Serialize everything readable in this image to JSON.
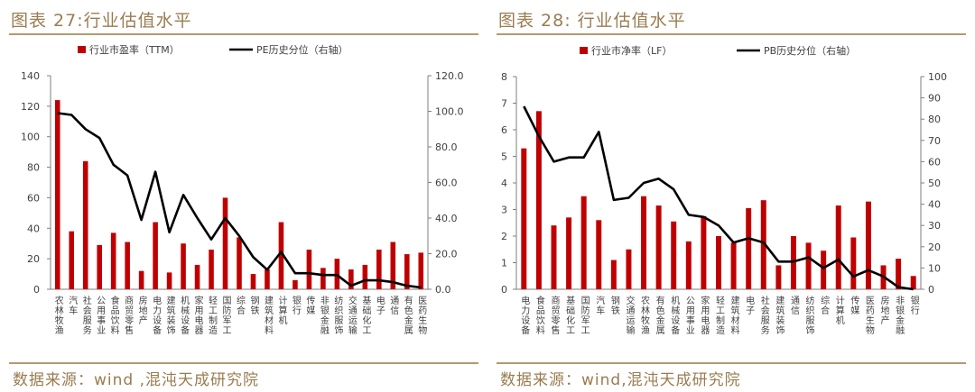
{
  "page": {
    "left_title": "图表 27:行业估值水平",
    "right_title": "图表 28: 行业估值水平",
    "left_source": "数据来源：wind ,混沌天成研究院",
    "right_source": "数据来源：wind,混沌天成研究院"
  },
  "colors": {
    "bar": "#c00000",
    "line": "#000000",
    "title": "#9a7c50",
    "rule": "#b39a6e",
    "axis": "#7f7f7f",
    "tick_text": "#404040"
  },
  "chart_data": [
    {
      "type": "bar",
      "legend": [
        "行业市盈率（TTM）",
        "PE历史分位（右轴）"
      ],
      "legend_position": "top",
      "grid": false,
      "ylim": [
        0,
        140
      ],
      "yticks": [
        "0",
        "20",
        "40",
        "60",
        "80",
        "100",
        "120",
        "140"
      ],
      "y2lim": [
        0,
        120
      ],
      "y2ticks": [
        "0.0",
        "20.0",
        "40.0",
        "60.0",
        "80.0",
        "100.0",
        "120.0"
      ],
      "categories": [
        "农林牧渔",
        "汽车",
        "社会服务",
        "公用事业",
        "食品饮料",
        "商贸零售",
        "房地产",
        "电力设备",
        "建筑装饰",
        "机械设备",
        "家用电器",
        "轻工制造",
        "国防军工",
        "综合",
        "钢铁",
        "建筑材料",
        "计算机",
        "银行",
        "传媒",
        "非银金融",
        "纺织服饰",
        "交通运输",
        "基础化工",
        "电子",
        "通信",
        "有色金属",
        "医药生物"
      ],
      "category_labels": [
        "农林牧渔",
        "汽车",
        "社会服务",
        "公用事业",
        "食品饮料",
        "商贸零售",
        "房地产",
        "电力设备",
        "建筑装饰",
        "机械设备",
        "家用电器",
        "轻工制造",
        "国防军工",
        "综合",
        "钢铁",
        "建筑材料",
        "计算机",
        "银行",
        "传媒",
        "非银金融",
        "纺织服饰",
        "交通运输",
        "基础化工",
        "电子",
        "通信",
        "有色金属",
        "医药生物"
      ],
      "series": [
        {
          "name": "行业市盈率（TTM）",
          "kind": "bar",
          "axis": "left",
          "values": [
            124,
            38,
            84,
            29,
            37,
            31,
            12,
            44,
            11,
            30,
            16,
            26,
            60,
            34,
            10,
            13,
            44,
            6,
            26,
            14,
            20,
            13,
            16,
            26,
            31,
            23,
            24
          ]
        },
        {
          "name": "PE历史分位（右轴）",
          "kind": "line",
          "axis": "right",
          "values": [
            99,
            98,
            90,
            85,
            70,
            64,
            39,
            66,
            32,
            53,
            40,
            28,
            40,
            30,
            18,
            11,
            21,
            9,
            9,
            8,
            8,
            2,
            5,
            5,
            4,
            2,
            1
          ]
        }
      ]
    },
    {
      "type": "bar",
      "legend": [
        "行业市净率（LF）",
        "PB历史分位（右轴）"
      ],
      "legend_position": "top",
      "grid": false,
      "ylim": [
        0,
        8
      ],
      "yticks": [
        "0",
        "1",
        "2",
        "3",
        "4",
        "5",
        "6",
        "7",
        "8"
      ],
      "y2lim": [
        0,
        100
      ],
      "y2ticks": [
        "0",
        "10",
        "20",
        "30",
        "40",
        "50",
        "60",
        "70",
        "80",
        "90",
        "100"
      ],
      "categories": [
        "电力设备",
        "食品饮料",
        "商贸零售",
        "基础化工",
        "国防军工",
        "汽车",
        "钢铁",
        "交通运输",
        "农林牧渔",
        "有色金属",
        "机械设备",
        "公用事业",
        "家用电器",
        "轻工制造",
        "建筑材料",
        "电子",
        "社会服务",
        "建筑装饰",
        "通信",
        "纺织服饰",
        "综合",
        "计算机",
        "传媒",
        "医药生物",
        "房地产",
        "非银金融",
        "银行"
      ],
      "category_labels": [
        "电力设备",
        "食品饮料",
        "商贸零售",
        "基础化工",
        "国防军工",
        "汽车",
        "钢铁",
        "交通运输",
        "农林牧渔",
        "有色金属",
        "机械设备",
        "公用事业",
        "家用电器",
        "轻工制造",
        "建筑材料",
        "电子",
        "社会服务",
        "建筑装饰",
        "通信",
        "纺织服饰",
        "综合",
        "计算机",
        "传媒",
        "医药生物",
        "房地产",
        "非银金融",
        "银行"
      ],
      "series": [
        {
          "name": "行业市净率（LF）",
          "kind": "bar",
          "axis": "left",
          "values": [
            5.3,
            6.7,
            2.4,
            2.7,
            3.5,
            2.6,
            1.1,
            1.5,
            3.5,
            3.15,
            2.55,
            1.8,
            2.75,
            2.0,
            1.75,
            3.05,
            3.35,
            0.9,
            2.0,
            1.75,
            1.45,
            3.15,
            1.95,
            3.3,
            0.9,
            1.15,
            0.5
          ]
        },
        {
          "name": "PB历史分位（右轴）",
          "kind": "line",
          "axis": "right",
          "values": [
            86,
            72,
            60,
            62,
            62,
            74,
            42,
            43,
            50,
            52,
            47,
            35,
            34,
            30,
            22,
            24,
            22,
            13,
            13,
            15,
            10,
            14,
            6,
            9,
            6,
            1,
            0
          ]
        }
      ]
    }
  ]
}
